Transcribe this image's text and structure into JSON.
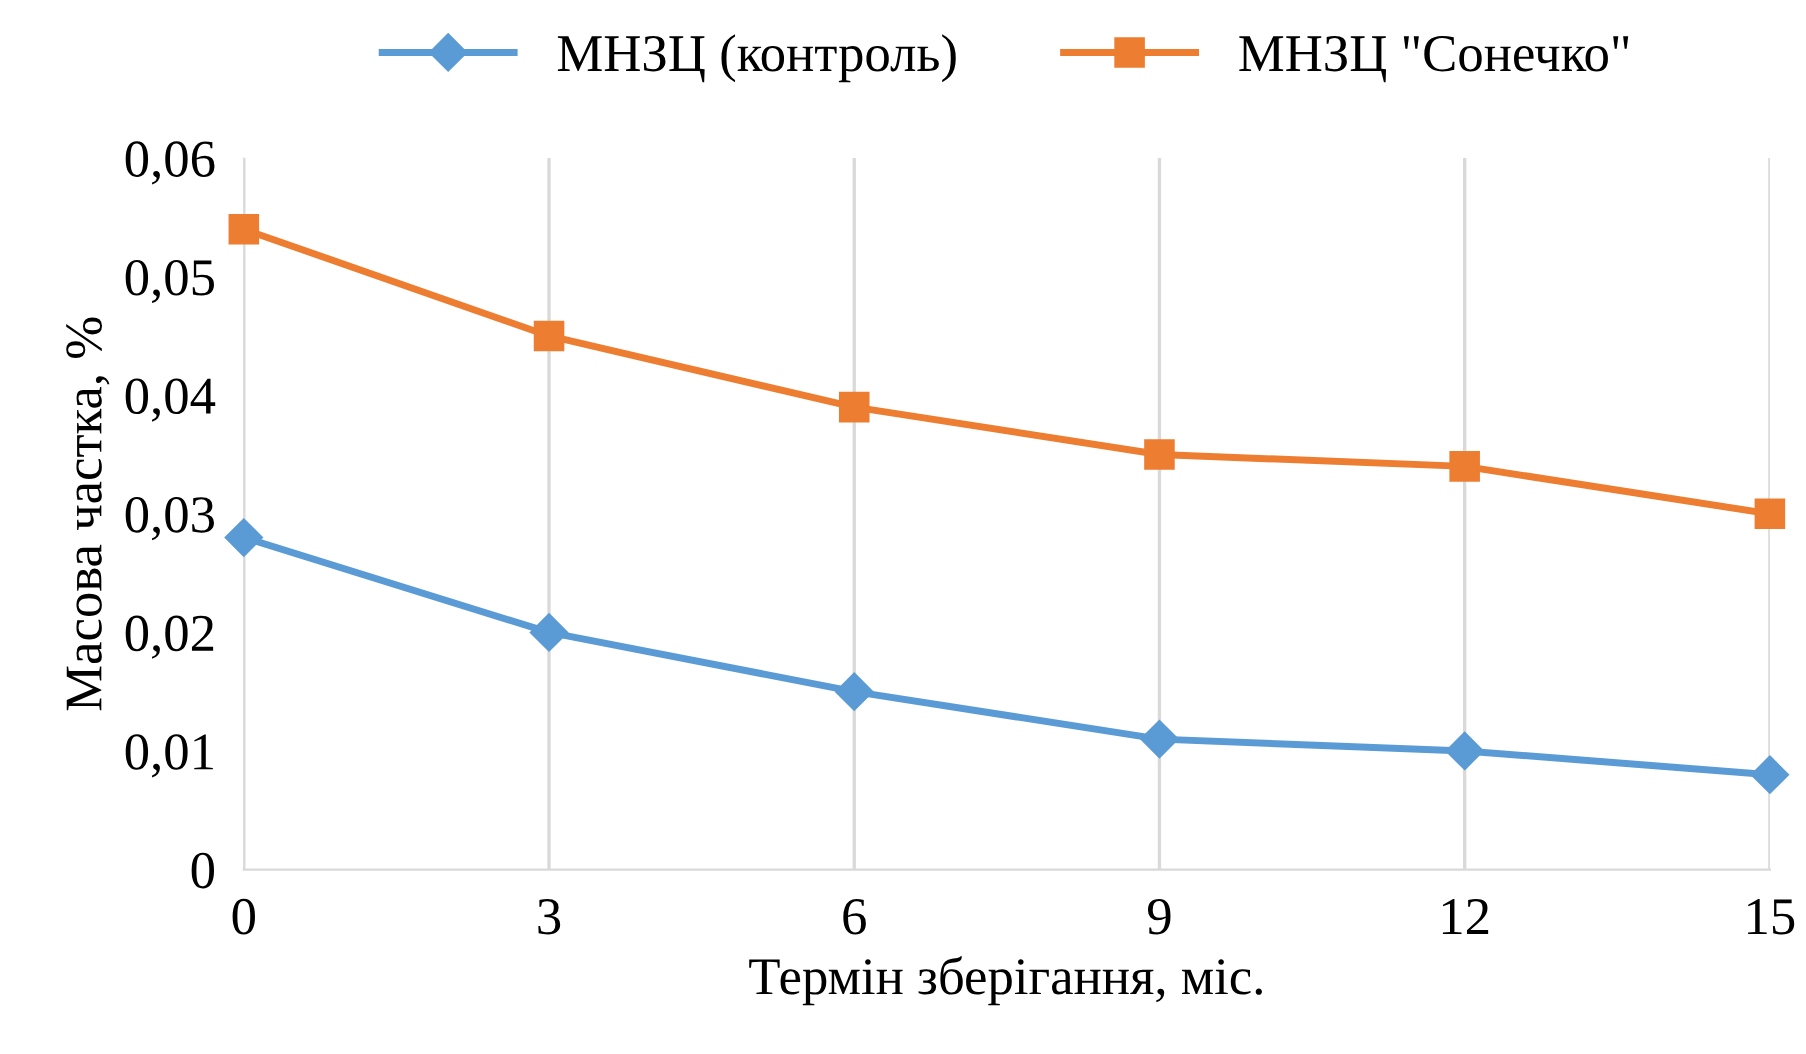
{
  "chart_data": {
    "type": "line",
    "xlabel": "Термін зберігання, міс.",
    "ylabel": "Масова частка, %",
    "x": [
      0,
      3,
      6,
      9,
      12,
      15
    ],
    "series": [
      {
        "name": "МНЗЦ (контроль)",
        "color": "#5b9bd5",
        "marker": "diamond",
        "values": [
          0.028,
          0.02,
          0.015,
          0.011,
          0.01,
          0.008
        ]
      },
      {
        "name": "МНЗЦ \"Сонечко\"",
        "color": "#ed7d31",
        "marker": "square",
        "values": [
          0.054,
          0.045,
          0.039,
          0.035,
          0.034,
          0.03
        ]
      }
    ],
    "xlim": [
      0,
      15
    ],
    "xticks": [
      0,
      3,
      6,
      9,
      12,
      15
    ],
    "ylim": [
      0,
      0.06
    ],
    "yticks": [
      0,
      {
        "value": 0.01,
        "label": "0,01"
      },
      {
        "value": 0.02,
        "label": "0,02"
      },
      {
        "value": 0.03,
        "label": "0,03"
      },
      {
        "value": 0.04,
        "label": "0,04"
      },
      {
        "value": 0.05,
        "label": "0,05"
      },
      {
        "value": 0.06,
        "label": "0,06"
      }
    ],
    "grid": "x",
    "legend": "top",
    "line_style": "solid"
  }
}
